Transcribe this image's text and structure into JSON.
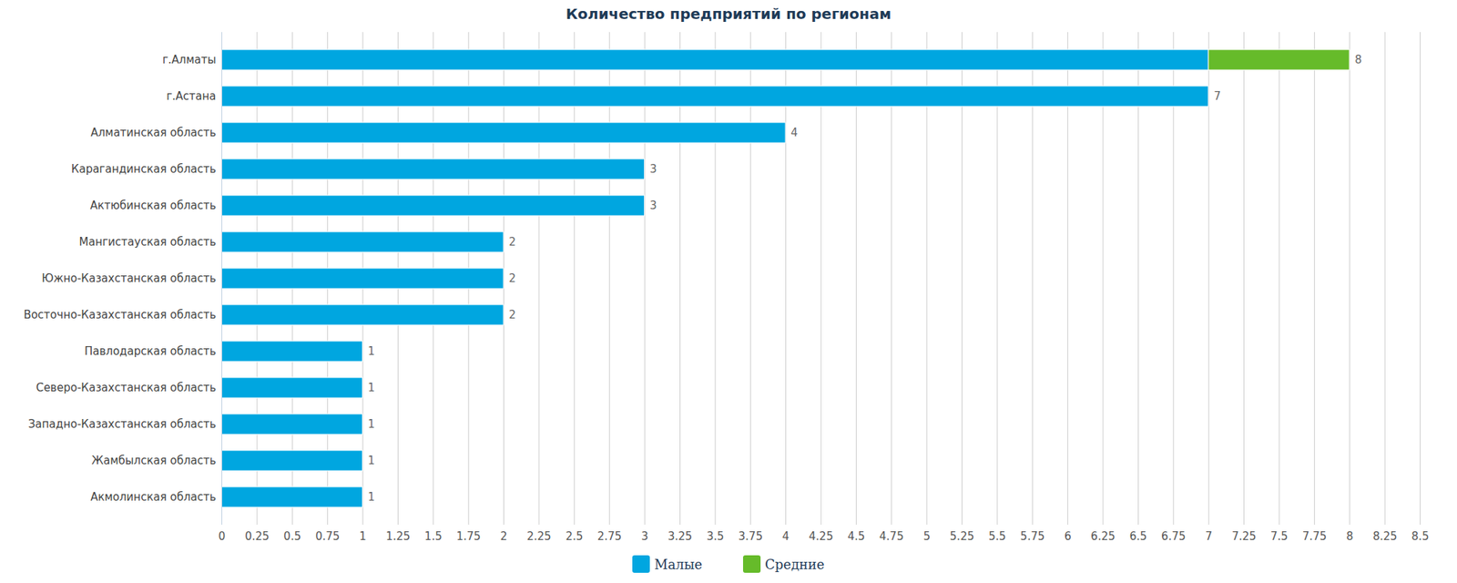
{
  "chart_data": {
    "type": "bar",
    "title": "Количество предприятий по регионам",
    "orientation": "horizontal",
    "stacked": true,
    "data_labels": true,
    "grid": true,
    "legend": "bottom",
    "categories": [
      "г.Алматы",
      "г.Астана",
      "Алматинская область",
      "Карагандинская область",
      "Актюбинская область",
      "Мангистауская область",
      "Южно-Казахстанская область",
      "Восточно-Казахстанская область",
      "Павлодарская область",
      "Северо-Казахстанская область",
      "Западно-Казахстанская область",
      "Жамбылская область",
      "Акмолинская область"
    ],
    "series": [
      {
        "name": "Малые",
        "color": "#00a6e0",
        "values": [
          7,
          7,
          4,
          3,
          3,
          2,
          2,
          2,
          1,
          1,
          1,
          1,
          1
        ]
      },
      {
        "name": "Средние",
        "color": "#66bb2a",
        "values": [
          1,
          null,
          null,
          null,
          null,
          null,
          null,
          null,
          null,
          null,
          null,
          null,
          null
        ]
      }
    ],
    "totals": [
      8,
      7,
      4,
      3,
      3,
      2,
      2,
      2,
      1,
      1,
      1,
      1,
      1
    ],
    "xlim": [
      0,
      8.5
    ],
    "xticks": [
      0,
      0.25,
      0.5,
      0.75,
      1,
      1.25,
      1.5,
      1.75,
      2,
      2.25,
      2.5,
      2.75,
      3,
      3.25,
      3.5,
      3.75,
      4,
      4.25,
      4.5,
      4.75,
      5,
      5.25,
      5.5,
      5.75,
      6,
      6.25,
      6.5,
      6.75,
      7,
      7.25,
      7.5,
      7.75,
      8,
      8.25,
      8.5
    ]
  }
}
